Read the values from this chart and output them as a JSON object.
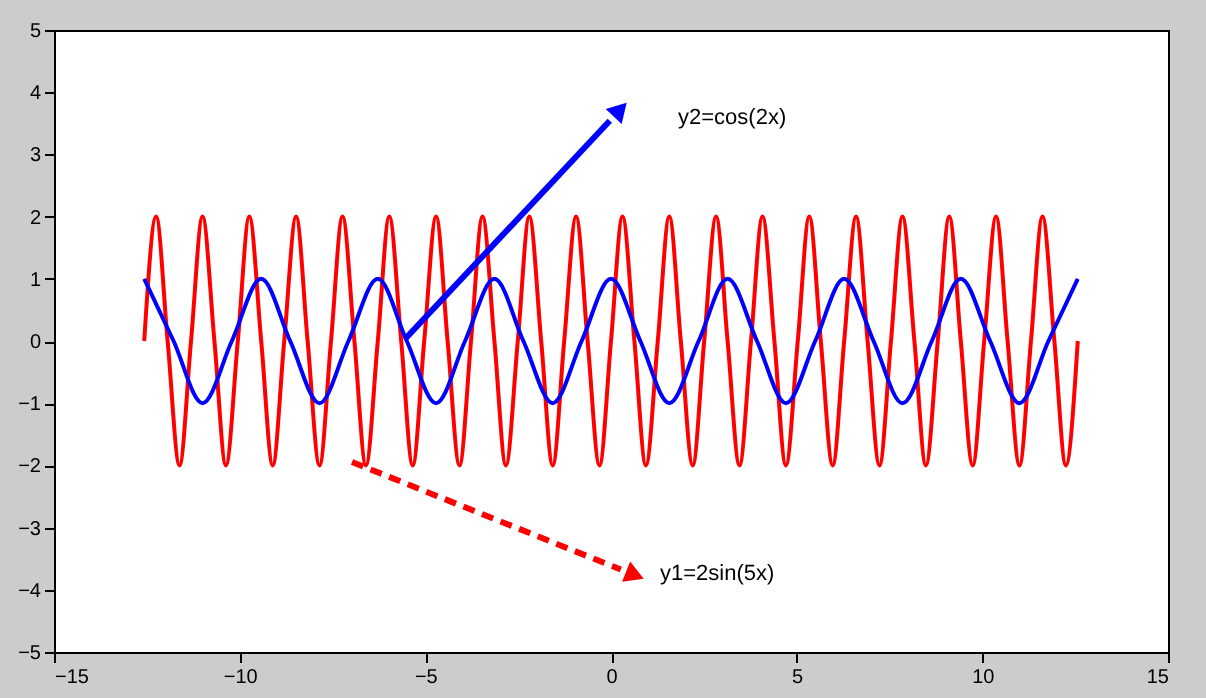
{
  "chart_data": {
    "type": "line",
    "xlim": [
      -15,
      15
    ],
    "xticks": [
      -15,
      -10,
      -5,
      0,
      5,
      10,
      15
    ],
    "ylim": [
      -5,
      5
    ],
    "yticks": [
      -5,
      -4,
      -3,
      -2,
      -1,
      0,
      1,
      2,
      3,
      4,
      5
    ],
    "grid": false,
    "series": [
      {
        "color": "#ff0000",
        "x": [
          -12.57,
          -12.25,
          -11.94,
          -11.62,
          -11.31,
          -11.0,
          -10.68,
          -10.37,
          -10.05,
          -9.74,
          -9.42,
          -9.11,
          -8.8,
          -8.48,
          -8.17,
          -7.85,
          -7.54,
          -7.23,
          -6.91,
          -6.6,
          -6.28,
          -5.97,
          -5.65,
          -5.34,
          -5.03,
          -4.71,
          -4.4,
          -4.08,
          -3.77,
          -3.46,
          -3.14,
          -2.83,
          -2.51,
          -2.2,
          -1.88,
          -1.57,
          -1.26,
          -0.94,
          -0.63,
          -0.31,
          0,
          0.31,
          0.63,
          0.94,
          1.26,
          1.57,
          1.88,
          2.2,
          2.51,
          2.83,
          3.14,
          3.46,
          3.77,
          4.08,
          4.4,
          4.71,
          5.03,
          5.34,
          5.65,
          5.97,
          6.28,
          6.6,
          6.91,
          7.23,
          7.54,
          7.85,
          8.17,
          8.48,
          8.8,
          9.11,
          9.42,
          9.74,
          10.05,
          10.37,
          10.68,
          11.0,
          11.31,
          11.62,
          11.94,
          12.25,
          12.57
        ],
        "values": [
          0,
          2,
          0,
          -2,
          0,
          2,
          0,
          -2,
          0,
          2,
          0,
          -2,
          0,
          2,
          0,
          -2,
          0,
          2,
          0,
          -2,
          0,
          2,
          0,
          -2,
          0,
          2,
          0,
          -2,
          0,
          2,
          0,
          -2,
          0,
          2,
          0,
          -2,
          0,
          2,
          0,
          -2,
          0,
          2,
          0,
          -2,
          0,
          2,
          0,
          -2,
          0,
          2,
          0,
          -2,
          0,
          2,
          0,
          -2,
          0,
          2,
          0,
          -2,
          0,
          2,
          0,
          -2,
          0,
          2,
          0,
          -2,
          0,
          2,
          0,
          -2,
          0,
          2,
          0,
          -2,
          0,
          2,
          0,
          -2,
          0
        ]
      },
      {
        "color": "#0000ff",
        "x": [
          -12.57,
          -11.78,
          -11.0,
          -10.21,
          -9.42,
          -8.64,
          -7.85,
          -7.07,
          -6.28,
          -5.5,
          -4.71,
          -3.93,
          -3.14,
          -2.36,
          -1.57,
          -0.79,
          0,
          0.79,
          1.57,
          2.36,
          3.14,
          3.93,
          4.71,
          5.5,
          6.28,
          7.07,
          7.85,
          8.64,
          9.42,
          10.21,
          11.0,
          11.78,
          12.57
        ],
        "values": [
          1,
          0,
          -1,
          0,
          1,
          0,
          -1,
          0,
          1,
          0,
          -1,
          0,
          1,
          0,
          -1,
          0,
          1,
          0,
          -1,
          0,
          1,
          0,
          -1,
          0,
          1,
          0,
          -1,
          0,
          1,
          0,
          -1,
          0,
          1
        ]
      }
    ],
    "annotations": [
      "y1=2sin(5x)",
      "y2=cos(2x)"
    ]
  }
}
